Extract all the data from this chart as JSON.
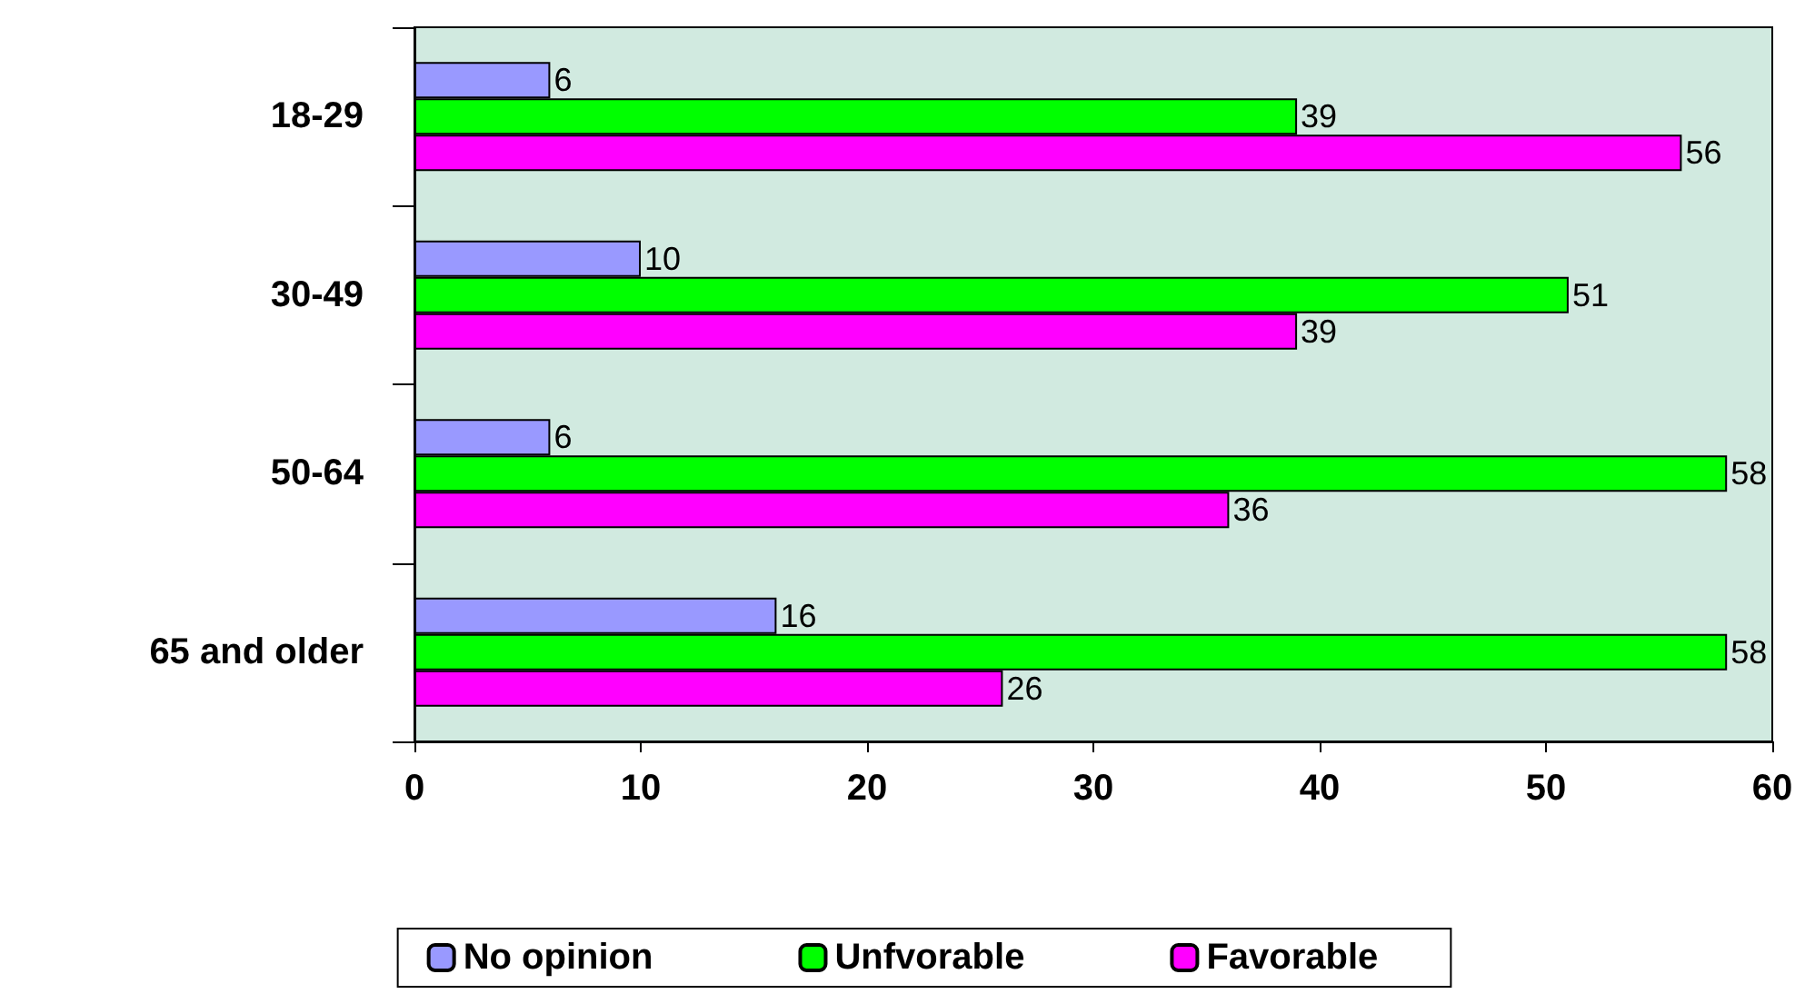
{
  "chart_data": {
    "type": "bar",
    "orientation": "horizontal",
    "categories": [
      "18-29",
      "30-49",
      "50-64",
      "65 and older"
    ],
    "series": [
      {
        "name": "No opinion",
        "color": "#9999ff",
        "values": [
          6,
          10,
          6,
          16
        ]
      },
      {
        "name": "Unfvorable",
        "color": "#00ff00",
        "values": [
          39,
          51,
          58,
          58
        ]
      },
      {
        "name": "Favorable",
        "color": "#ff00ff",
        "values": [
          56,
          39,
          36,
          26
        ]
      }
    ],
    "xlim": [
      0,
      60
    ],
    "xticks": [
      0,
      10,
      20,
      30,
      40,
      50,
      60
    ],
    "data_labels": true,
    "grid": false,
    "legend": "bottom"
  }
}
